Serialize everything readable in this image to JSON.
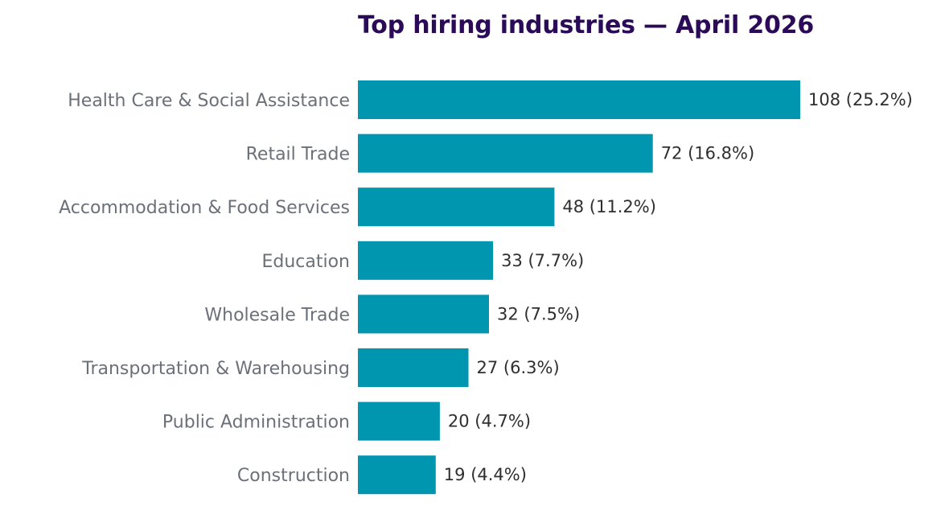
{
  "chart_data": {
    "type": "bar",
    "orientation": "horizontal",
    "title": "Top hiring industries — April 2026",
    "categories": [
      "Health Care & Social Assistance",
      "Retail Trade",
      "Accommodation & Food Services",
      "Education",
      "Wholesale Trade",
      "Transportation & Warehousing",
      "Public Administration",
      "Construction"
    ],
    "values": [
      108,
      72,
      48,
      33,
      32,
      27,
      20,
      19
    ],
    "value_labels": [
      "108  (25.2%)",
      "72  (16.8%)",
      "48  (11.2%)",
      "33  (7.7%)",
      "32  (7.5%)",
      "27  (6.3%)",
      "20  (4.7%)",
      "19  (4.4%)"
    ],
    "xlabel": "",
    "ylabel": "",
    "xlim": [
      0,
      108
    ],
    "grid": false,
    "legend": "none",
    "colors": {
      "bar": "#0096b0",
      "title": "#2b0a57",
      "category_text": "#6b7079",
      "value_text": "#2f2f2f"
    }
  }
}
